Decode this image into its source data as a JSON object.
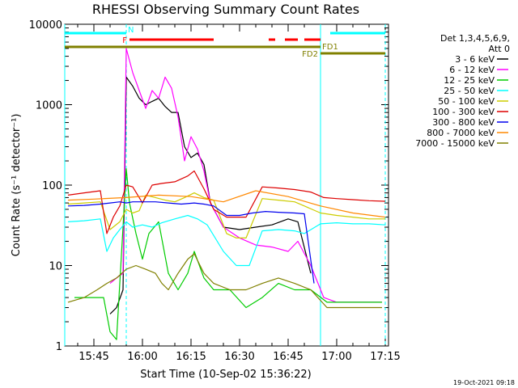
{
  "chart_data": {
    "type": "line",
    "title": "RHESSI Observing Summary Count Rates",
    "xlabel": "Start Time (10-Sep-02 15:36:22)",
    "ylabel": "Count Rate (s⁻¹ detector⁻¹)",
    "yscale": "log",
    "ylim": [
      1,
      10000
    ],
    "xlim": [
      "15:36",
      "17:16"
    ],
    "x_ticks": [
      "15:45",
      "16:00",
      "16:15",
      "16:30",
      "16:45",
      "17:00",
      "17:15"
    ],
    "y_ticks": [
      "1",
      "10",
      "100",
      "1000",
      "10000"
    ],
    "legend": {
      "position": "right",
      "header": [
        "Det 1,3,4,5,6,9,",
        "Att 0"
      ]
    },
    "series": [
      {
        "name": "3 - 6 keV",
        "color": "#000000",
        "x": [
          "15:50",
          "15:52",
          "15:54",
          "15:55",
          "15:57",
          "15:59",
          "16:01",
          "16:03",
          "16:05",
          "16:07",
          "16:09",
          "16:11",
          "16:13",
          "16:15",
          "16:17",
          "16:19",
          "16:21",
          "16:25",
          "16:30",
          "16:35",
          "16:40",
          "16:45",
          "16:48",
          "16:52"
        ],
        "y": [
          2.5,
          3,
          5,
          2200,
          1700,
          1200,
          1000,
          1100,
          1200,
          950,
          800,
          800,
          300,
          220,
          250,
          180,
          60,
          30,
          28,
          30,
          32,
          38,
          35,
          8
        ]
      },
      {
        "name": "6 - 12 keV",
        "color": "#ff00ff",
        "x": [
          "15:50",
          "15:52",
          "15:54",
          "15:55",
          "15:57",
          "15:59",
          "16:01",
          "16:03",
          "16:05",
          "16:07",
          "16:09",
          "16:11",
          "16:13",
          "16:15",
          "16:17",
          "16:19",
          "16:21",
          "16:25",
          "16:30",
          "16:35",
          "16:40",
          "16:45",
          "16:48",
          "16:52",
          "16:56",
          "17:00",
          "17:05",
          "17:10",
          "17:14"
        ],
        "y": [
          6,
          7,
          8,
          5000,
          2500,
          1500,
          900,
          1500,
          1200,
          2200,
          1600,
          700,
          200,
          400,
          280,
          150,
          60,
          30,
          22,
          18,
          17,
          15,
          20,
          10,
          4,
          3.5,
          3.5,
          3.5,
          3.5
        ]
      },
      {
        "name": "12 - 25 keV",
        "color": "#00cc00",
        "x": [
          "15:39",
          "15:44",
          "15:48",
          "15:50",
          "15:52",
          "15:54",
          "15:55",
          "15:56",
          "15:58",
          "16:00",
          "16:02",
          "16:05",
          "16:08",
          "16:11",
          "16:14",
          "16:16",
          "16:19",
          "16:22",
          "16:27",
          "16:32",
          "16:37",
          "16:42",
          "16:47",
          "16:52",
          "16:57",
          "17:05",
          "17:14"
        ],
        "y": [
          4,
          4,
          4,
          1.5,
          1.2,
          30,
          160,
          60,
          25,
          12,
          25,
          35,
          8,
          5,
          8,
          15,
          7,
          5,
          5,
          3,
          4,
          6,
          5,
          5,
          3.5,
          3.5,
          3.5
        ]
      },
      {
        "name": "25 - 50 keV",
        "color": "#00ffff",
        "x": [
          "15:37",
          "15:42",
          "15:47",
          "15:49",
          "15:51",
          "15:53",
          "15:55",
          "15:57",
          "16:00",
          "16:03",
          "16:06",
          "16:10",
          "16:14",
          "16:17",
          "16:20",
          "16:25",
          "16:29",
          "16:33",
          "16:37",
          "16:42",
          "16:47",
          "16:50",
          "16:55",
          "17:00",
          "17:05",
          "17:10",
          "17:15"
        ],
        "y": [
          35,
          36,
          38,
          15,
          22,
          28,
          35,
          30,
          32,
          30,
          34,
          38,
          42,
          38,
          32,
          15,
          10,
          10,
          27,
          28,
          27,
          25,
          33,
          34,
          33,
          33,
          32
        ]
      },
      {
        "name": "50 - 100 keV",
        "color": "#cccc00",
        "x": [
          "15:37",
          "15:42",
          "15:47",
          "15:50",
          "15:53",
          "15:55",
          "15:57",
          "15:59",
          "16:01",
          "16:04",
          "16:07",
          "16:10",
          "16:13",
          "16:16",
          "16:19",
          "16:22",
          "16:26",
          "16:29",
          "16:32",
          "16:37",
          "16:42",
          "16:47",
          "16:50",
          "16:55",
          "17:00",
          "17:05",
          "17:10",
          "17:15"
        ],
        "y": [
          58,
          60,
          62,
          28,
          35,
          50,
          45,
          48,
          75,
          70,
          65,
          62,
          70,
          80,
          70,
          65,
          25,
          22,
          22,
          68,
          65,
          62,
          55,
          45,
          42,
          40,
          38,
          38
        ]
      },
      {
        "name": "100 - 300 keV",
        "color": "#dd0000",
        "x": [
          "15:37",
          "15:42",
          "15:47",
          "15:49",
          "15:51",
          "15:53",
          "15:55",
          "15:57",
          "16:00",
          "16:03",
          "16:06",
          "16:10",
          "16:14",
          "16:16",
          "16:19",
          "16:22",
          "16:26",
          "16:29",
          "16:32",
          "16:37",
          "16:42",
          "16:47",
          "16:52",
          "16:56",
          "17:00",
          "17:05",
          "17:10",
          "17:15"
        ],
        "y": [
          75,
          80,
          85,
          25,
          40,
          55,
          100,
          95,
          60,
          100,
          105,
          110,
          130,
          150,
          90,
          50,
          40,
          40,
          40,
          95,
          92,
          88,
          82,
          70,
          68,
          66,
          64,
          63
        ]
      },
      {
        "name": "300 - 800 keV",
        "color": "#0000ee",
        "x": [
          "15:37",
          "15:42",
          "15:47",
          "15:50",
          "15:53",
          "15:55",
          "15:57",
          "16:00",
          "16:04",
          "16:08",
          "16:12",
          "16:16",
          "16:19",
          "16:22",
          "16:26",
          "16:30",
          "16:34",
          "16:38",
          "16:42",
          "16:47",
          "16:50",
          "16:53"
        ],
        "y": [
          55,
          56,
          58,
          60,
          62,
          60,
          62,
          62,
          62,
          60,
          58,
          60,
          58,
          55,
          42,
          42,
          45,
          47,
          46,
          45,
          44,
          6
        ]
      },
      {
        "name": "800 - 7000 keV",
        "color": "#ff8800",
        "x": [
          "15:37",
          "15:45",
          "15:55",
          "16:05",
          "16:15",
          "16:25",
          "16:35",
          "16:45",
          "16:55",
          "17:05",
          "17:15"
        ],
        "y": [
          65,
          67,
          70,
          75,
          72,
          62,
          85,
          72,
          55,
          45,
          40
        ]
      },
      {
        "name": "7000 - 15000 keV",
        "color": "#808000",
        "x": [
          "15:37",
          "15:42",
          "15:46",
          "15:49",
          "15:52",
          "15:55",
          "15:58",
          "16:01",
          "16:04",
          "16:06",
          "16:08",
          "16:11",
          "16:14",
          "16:16",
          "16:19",
          "16:22",
          "16:27",
          "16:32",
          "16:37",
          "16:42",
          "16:47",
          "16:52",
          "16:57",
          "17:05",
          "17:14"
        ],
        "y": [
          3.5,
          4,
          5,
          6,
          7,
          9,
          10,
          9,
          8,
          6,
          5,
          8,
          12,
          14,
          8,
          6,
          5,
          5,
          6,
          7,
          6,
          5,
          3,
          3,
          3
        ]
      }
    ],
    "annotations": [
      {
        "label": "N",
        "color": "#00ffff",
        "segments": [
          [
            "15:36",
            "15:55"
          ],
          [
            "16:58",
            "17:15"
          ]
        ],
        "level": "top"
      },
      {
        "label": "F",
        "color": "#ff0000",
        "segments": [
          [
            "15:56",
            "16:22"
          ],
          [
            "16:39",
            "16:41"
          ],
          [
            "16:44",
            "16:48"
          ],
          [
            "16:50",
            "16:55"
          ]
        ],
        "level": "flare"
      },
      {
        "label": "FD1",
        "color": "#808000",
        "segments": [
          [
            "15:36",
            "16:55"
          ]
        ],
        "level": "fd1"
      },
      {
        "label": "FD2",
        "color": "#808000",
        "segments": [
          [
            "16:55",
            "17:15"
          ]
        ],
        "level": "fd2"
      }
    ],
    "markers": {
      "solid": {
        "color": "#00ffff",
        "x": [
          "15:36",
          "16:55"
        ]
      },
      "dashed": {
        "color": "#00ffff",
        "x": [
          "15:55",
          "17:15"
        ]
      }
    }
  },
  "timestamp": "19-Oct-2021 09:18"
}
